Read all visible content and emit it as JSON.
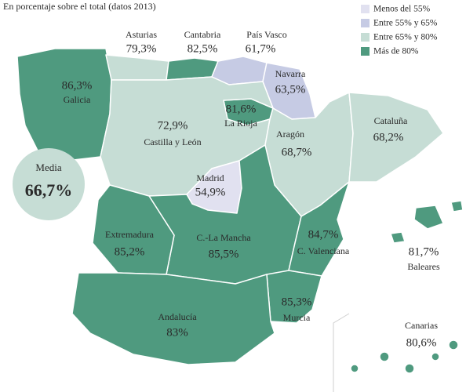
{
  "subtitle": "En porcentaje sobre el total (datos 2013)",
  "legend": [
    {
      "label": "Menos del 55%",
      "color": "#e1e1f0"
    },
    {
      "label": "Entre 55% y 65%",
      "color": "#c6cbe4"
    },
    {
      "label": "Entre 65% y 80%",
      "color": "#c6ddd5"
    },
    {
      "label": "Más de 80%",
      "color": "#4f9a7f"
    }
  ],
  "media": {
    "label": "Media",
    "value": "66,7%"
  },
  "regions": [
    {
      "name": "Asturias",
      "value": "79,3%"
    },
    {
      "name": "Cantabria",
      "value": "82,5%"
    },
    {
      "name": "País Vasco",
      "value": "61,7%"
    },
    {
      "name": "Navarra",
      "value": "63,5%"
    },
    {
      "name": "Galicia",
      "value": "86,3%"
    },
    {
      "name": "La Rioja",
      "value": "81,6%"
    },
    {
      "name": "Castilla y León",
      "value": "72,9%"
    },
    {
      "name": "Aragón",
      "value": "68,7%"
    },
    {
      "name": "Cataluña",
      "value": "68,2%"
    },
    {
      "name": "Madrid",
      "value": "54,9%"
    },
    {
      "name": "Extremadura",
      "value": "85,2%"
    },
    {
      "name": "C.-La Mancha",
      "value": "85,5%"
    },
    {
      "name": "C. Valenciana",
      "value": "84,7%"
    },
    {
      "name": "Baleares",
      "value": "81,7%"
    },
    {
      "name": "Murcia",
      "value": "85,3%"
    },
    {
      "name": "Andalucía",
      "value": "83%"
    },
    {
      "name": "Canarias",
      "value": "80,6%"
    }
  ]
}
